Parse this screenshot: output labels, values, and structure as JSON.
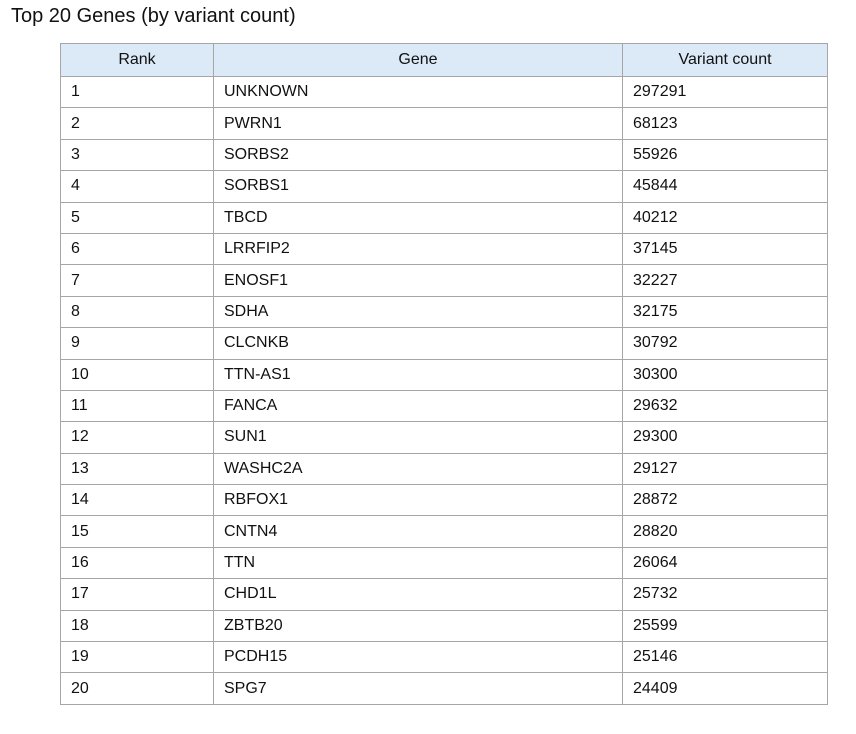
{
  "chart_data": {
    "type": "table",
    "title": "Top 20 Genes (by variant count)",
    "columns": [
      "Rank",
      "Gene",
      "Variant count"
    ],
    "rows": [
      [
        "1",
        "UNKNOWN",
        "297291"
      ],
      [
        "2",
        "PWRN1",
        "68123"
      ],
      [
        "3",
        "SORBS2",
        "55926"
      ],
      [
        "4",
        "SORBS1",
        "45844"
      ],
      [
        "5",
        "TBCD",
        "40212"
      ],
      [
        "6",
        "LRRFIP2",
        "37145"
      ],
      [
        "7",
        "ENOSF1",
        "32227"
      ],
      [
        "8",
        "SDHA",
        "32175"
      ],
      [
        "9",
        "CLCNKB",
        "30792"
      ],
      [
        "10",
        "TTN-AS1",
        "30300"
      ],
      [
        "11",
        "FANCA",
        "29632"
      ],
      [
        "12",
        "SUN1",
        "29300"
      ],
      [
        "13",
        "WASHC2A",
        "29127"
      ],
      [
        "14",
        "RBFOX1",
        "28872"
      ],
      [
        "15",
        "CNTN4",
        "28820"
      ],
      [
        "16",
        "TTN",
        "26064"
      ],
      [
        "17",
        "CHD1L",
        "25732"
      ],
      [
        "18",
        "ZBTB20",
        "25599"
      ],
      [
        "19",
        "PCDH15",
        "25146"
      ],
      [
        "20",
        "SPG7",
        "24409"
      ]
    ]
  },
  "colors": {
    "header_background": "#dce9f7",
    "grid_line": "#a6a6a6"
  }
}
